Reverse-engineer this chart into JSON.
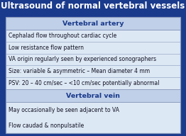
{
  "title": "Ultrasound of normal vertebral vessels",
  "title_color": "#FFFFFF",
  "title_fontsize": 8.5,
  "background_color": "#1A3A8C",
  "table_bg": "#DDE8F5",
  "header1": "Vertebral artery",
  "header1_color": "#1A3A8C",
  "header1_bg": "#C0D0E8",
  "artery_lines": [
    "Cephalad flow throughout cardiac cycle",
    "Low resistance flow pattern",
    "VA origin regularly seen by experienced sonographers",
    "Size: variable & asymmetric – Mean diameter 4 mm",
    "PSV: 20 – 40 cm/sec – <10 cm/sec potentially abnormal"
  ],
  "header2": "Vertebral vein",
  "header2_color": "#1A3A8C",
  "header2_bg": "#C0D0E8",
  "vein_lines": [
    "May occasionally be seen adjacent to VA",
    "Flow caudad & nonpulsatile"
  ],
  "border_color": "#8899BB",
  "divider_color": "#8899BB",
  "text_color": "#111122",
  "text_fontsize": 5.5,
  "header_fontsize": 6.8,
  "fig_width": 2.62,
  "fig_height": 1.92,
  "dpi": 100
}
